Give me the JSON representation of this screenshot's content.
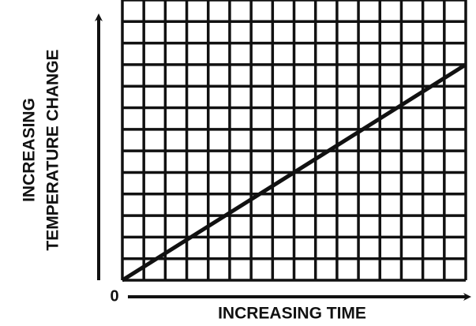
{
  "chart_data": {
    "type": "line",
    "xlabel": "INCREASING TIME",
    "ylabel": [
      "INCREASING",
      "TEMPERATURE CHANGE"
    ],
    "x": [
      0,
      16
    ],
    "series": [
      {
        "color": "#111111",
        "values": [
          0,
          10
        ]
      }
    ],
    "xlim": [
      0,
      16
    ],
    "ylim": [
      0,
      13
    ],
    "xticks": [
      0
    ],
    "grid": true
  }
}
